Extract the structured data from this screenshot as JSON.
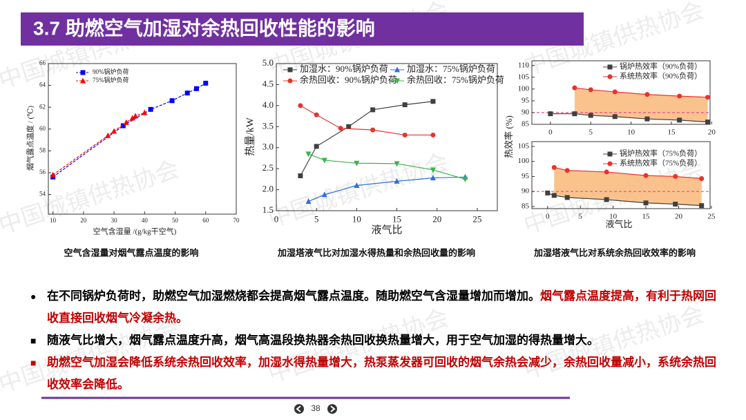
{
  "header": {
    "title": "3.7 助燃空气加湿对余热回收性能的影响"
  },
  "watermark": "中国城镇供热协会",
  "chart_data": [
    {
      "type": "line",
      "xlabel": "空气含湿量 /(g/kg干空气)",
      "ylabel": "烟气露点温度 / (℃)",
      "xlim": [
        8.5,
        70
      ],
      "ylim": [
        52.2,
        66
      ],
      "xticks": [
        10,
        20,
        30,
        40,
        50,
        60,
        70
      ],
      "yticks": [
        54,
        56,
        58,
        60,
        62,
        64,
        66
      ],
      "legend": "upper left",
      "series": [
        {
          "name": "90%锅炉负荷",
          "color": "#0000ff",
          "marker": "square",
          "dash": true,
          "x": [
            10,
            33,
            42,
            49,
            54,
            57,
            60
          ],
          "values": [
            55.6,
            60.3,
            61.8,
            62.6,
            63.3,
            63.7,
            64.2
          ]
        },
        {
          "name": "75%锅炉负荷",
          "color": "#ff0000",
          "marker": "triangle",
          "dash": true,
          "x": [
            10,
            28,
            30,
            34,
            36,
            37,
            40
          ],
          "values": [
            55.8,
            59.4,
            59.8,
            60.6,
            61.0,
            61.2,
            61.5
          ]
        }
      ]
    },
    {
      "type": "line",
      "xlabel": "液气比",
      "ylabel": "热量/kW",
      "xlim": [
        0,
        27.5
      ],
      "ylim": [
        1.5,
        5.0
      ],
      "xticks": [
        0,
        5,
        10,
        15,
        20,
        25
      ],
      "yticks": [
        1.5,
        {
          "value": 2,
          "label": "2.0"
        },
        2.5,
        {
          "value": 3,
          "label": "3.0"
        },
        3.5,
        {
          "value": 4,
          "label": "4.0"
        },
        4.5,
        {
          "value": 5,
          "label": "5.0"
        }
      ],
      "legend": "upper",
      "series": [
        {
          "name": "加湿水：90%锅炉负荷",
          "color": "#404040",
          "marker": "square",
          "x": [
            3,
            5,
            9,
            12,
            16,
            19.5
          ],
          "values": [
            2.33,
            3.03,
            3.5,
            3.9,
            4.02,
            4.1
          ]
        },
        {
          "name": "加湿水：75%锅炉负荷",
          "color": "#2f6fdc",
          "marker": "triangle",
          "x": [
            4,
            6,
            10,
            15,
            19.5,
            23.5
          ],
          "values": [
            1.72,
            1.88,
            2.1,
            2.2,
            2.28,
            2.3
          ]
        },
        {
          "name": "余热回收：90%锅炉负荷",
          "color": "#e8322b",
          "marker": "circle",
          "x": [
            3,
            5,
            8,
            12,
            16,
            19.5
          ],
          "values": [
            4.0,
            3.78,
            3.46,
            3.42,
            3.3,
            3.3
          ]
        },
        {
          "name": "余热回收：75%锅炉负荷",
          "color": "#3cb44b",
          "marker": "triangle-down",
          "x": [
            4,
            6,
            10,
            15,
            19.5,
            23.5
          ],
          "values": [
            2.85,
            2.7,
            2.63,
            2.62,
            2.47,
            2.25
          ]
        }
      ]
    },
    {
      "type": "line",
      "ylabel": "热效率 (%)",
      "xlim": [
        -2.3,
        19.8
      ],
      "ylim": [
        85,
        112
      ],
      "xticks": [
        0,
        5,
        10,
        15,
        20
      ],
      "yticks": [
        85,
        90,
        95,
        100,
        105,
        110
      ],
      "legend": "upper right",
      "hline": 90,
      "hline_color": "#e8488a",
      "fill_color": "#f9b97a",
      "series": [
        {
          "name": "锅炉热效率（90%负荷）",
          "color": "#404040",
          "marker": "square",
          "x": [
            0,
            3,
            5,
            8,
            12,
            16,
            19.5
          ],
          "values": [
            89.5,
            89.5,
            88.8,
            88.3,
            87.3,
            86.8,
            86.0
          ]
        },
        {
          "name": "系统热效率（90%负荷）",
          "color": "#e8322b",
          "marker": "circle",
          "x": [
            3,
            5,
            8,
            12,
            16,
            19.5
          ],
          "values": [
            100.5,
            99.7,
            98.8,
            97.7,
            97.0,
            96.5
          ]
        }
      ]
    },
    {
      "type": "line",
      "xlabel": "液气比",
      "xlim": [
        -2.4,
        24.8
      ],
      "ylim": [
        84.3,
        106.6
      ],
      "xticks": [
        0,
        5,
        10,
        15,
        20,
        25
      ],
      "yticks": [
        85,
        90,
        95,
        100,
        105
      ],
      "legend": "upper right",
      "hline": 90,
      "hline_color": "#e8488a",
      "fill_color": "#f9b97a",
      "series": [
        {
          "name": "锅炉热效率（75%负荷）",
          "color": "#404040",
          "marker": "square",
          "x": [
            0,
            1,
            3,
            9,
            15,
            19.5,
            23.5
          ],
          "values": [
            89.5,
            88.7,
            88.0,
            87.3,
            86.2,
            85.8,
            85.3
          ]
        },
        {
          "name": "系统热效率（75%负荷）",
          "color": "#e8322b",
          "marker": "circle",
          "x": [
            1,
            3,
            9,
            15,
            19.5,
            23.5
          ],
          "values": [
            98.0,
            97.0,
            96.5,
            95.3,
            95.0,
            94.3
          ]
        }
      ]
    }
  ],
  "captions": [
    "空气含湿量对烟气露点温度的影响",
    "加湿塔液气比对加湿水得热量和余热回收量的影响",
    "加湿塔液气比对系统余热回收效率的影响"
  ],
  "bullets": [
    {
      "marker": "●",
      "marker_color": "#000000",
      "segments": [
        {
          "text": "在不同锅炉负荷时，助燃空气加湿燃烧都会提高烟气露点温度。随助燃空气含湿量增加而增加。",
          "color": "#000000"
        },
        {
          "text": "烟气露点温度提高，有利于热网回收直接回收烟气冷凝余热。",
          "color": "#c00000"
        }
      ]
    },
    {
      "marker": "■",
      "marker_color": "#000000",
      "segments": [
        {
          "text": "随液气比增大，烟气露点温度升高，烟气高温段换热器余热回收换热量增大，用于空气加湿的得热量增大。",
          "color": "#000000"
        }
      ]
    },
    {
      "marker": "■",
      "marker_color": "#c00000",
      "segments": [
        {
          "text": "助燃空气加湿会降低系统余热回收效率，加湿水得热量增大，热泵蒸发器可回收的烟气余热会减少，余热回收量减小，系统余热回收效率会降低。",
          "color": "#c00000"
        }
      ]
    }
  ],
  "page_number": "38"
}
